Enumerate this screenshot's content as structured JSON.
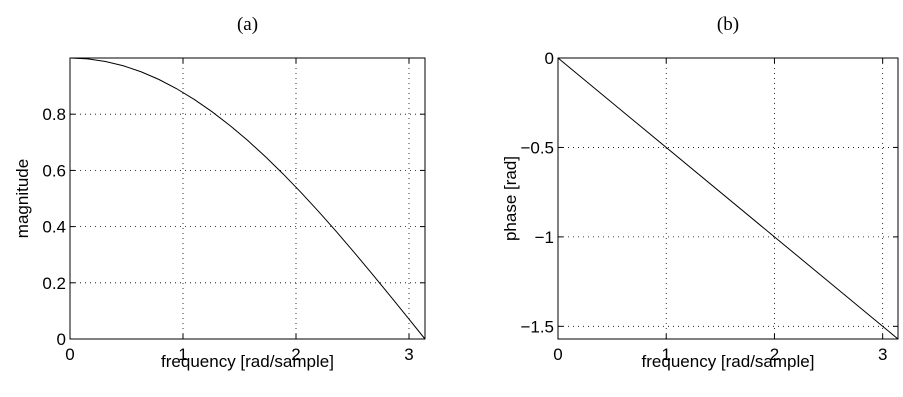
{
  "chart_data": [
    {
      "type": "line",
      "title": "(a)",
      "xlabel": "frequency [rad/sample]",
      "ylabel": "magnitude",
      "xlim": [
        0,
        3.1416
      ],
      "ylim": [
        0,
        1.0
      ],
      "xticks": [
        0,
        1,
        2,
        3
      ],
      "xtick_labels": [
        "0",
        "1",
        "2",
        "3"
      ],
      "yticks": [
        0,
        0.2,
        0.4,
        0.6,
        0.8
      ],
      "ytick_labels": [
        "0",
        "0.2",
        "0.4",
        "0.6",
        "0.8"
      ],
      "grid": true,
      "series": [
        {
          "x": [
            0,
            0.1571,
            0.3142,
            0.4712,
            0.6283,
            0.7854,
            0.9425,
            1.0996,
            1.2566,
            1.4137,
            1.5708,
            1.7279,
            1.885,
            2.042,
            2.1991,
            2.3562,
            2.5133,
            2.6704,
            2.8274,
            2.9845,
            3.1416
          ],
          "y": [
            1.0,
            0.9969,
            0.9877,
            0.9724,
            0.9511,
            0.9239,
            0.891,
            0.8526,
            0.809,
            0.7604,
            0.7071,
            0.6494,
            0.5878,
            0.5225,
            0.454,
            0.3827,
            0.309,
            0.2334,
            0.1564,
            0.0785,
            0.0
          ]
        }
      ]
    },
    {
      "type": "line",
      "title": "(b)",
      "xlabel": "frequency [rad/sample]",
      "ylabel": "phase [rad]",
      "xlim": [
        0,
        3.1416
      ],
      "ylim": [
        -1.5708,
        0
      ],
      "xticks": [
        0,
        1,
        2,
        3
      ],
      "xtick_labels": [
        "0",
        "1",
        "2",
        "3"
      ],
      "yticks": [
        -1.5,
        -1,
        -0.5,
        0
      ],
      "ytick_labels": [
        "−1.5",
        "−1",
        "−0.5",
        "0"
      ],
      "grid": true,
      "series": [
        {
          "x": [
            0,
            3.1416
          ],
          "y": [
            0,
            -1.5708
          ]
        }
      ]
    }
  ]
}
